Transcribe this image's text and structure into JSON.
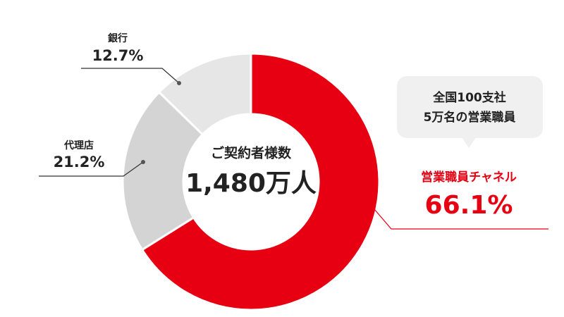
{
  "chart_data": {
    "type": "donut",
    "categories": [
      "営業職員チャネル",
      "代理店",
      "銀行"
    ],
    "values": [
      66.1,
      21.2,
      12.7
    ],
    "value_labels": [
      "66.1%",
      "21.2%",
      "12.7%"
    ],
    "colors": [
      "#e60012",
      "#d4d4d4",
      "#e6e6e6"
    ],
    "center_title": "ご契約者様数",
    "center_value": "1,480万人",
    "callout": [
      "全国100支社",
      "5万名の営業職員"
    ]
  }
}
